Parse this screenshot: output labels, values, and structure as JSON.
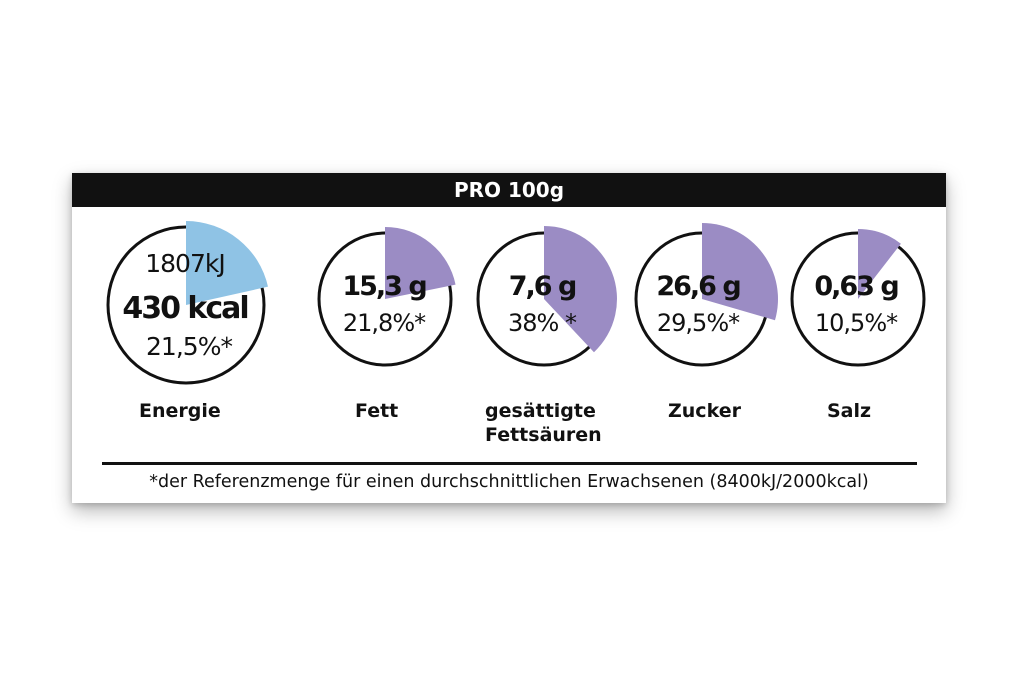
{
  "header": {
    "title": "PRO 100g"
  },
  "colors": {
    "energy": "#8fc3e5",
    "nutrient": "#9b8cc4",
    "text": "#111111",
    "header_bg": "#111111"
  },
  "nutrients": [
    {
      "id": "energie",
      "kj": "1807kJ",
      "amount": "430 kcal",
      "percent_label": "21,5%*",
      "fraction": 0.215,
      "label": "Energie"
    },
    {
      "id": "fett",
      "amount": "15,3 g",
      "percent_label": "21,8%*",
      "fraction": 0.218,
      "label": "Fett"
    },
    {
      "id": "gesaettigte",
      "amount": "7,6 g",
      "percent_label": "38% *",
      "fraction": 0.38,
      "label": "gesättigte\nFettsäuren"
    },
    {
      "id": "zucker",
      "amount": "26,6 g",
      "percent_label": "29,5%*",
      "fraction": 0.295,
      "label": "Zucker"
    },
    {
      "id": "salz",
      "amount": "0,63 g",
      "percent_label": "10,5%*",
      "fraction": 0.105,
      "label": "Salz"
    }
  ],
  "footnote": "*der Referenzmenge für einen durchschnittlichen Erwachsenen (8400kJ/2000kcal)"
}
